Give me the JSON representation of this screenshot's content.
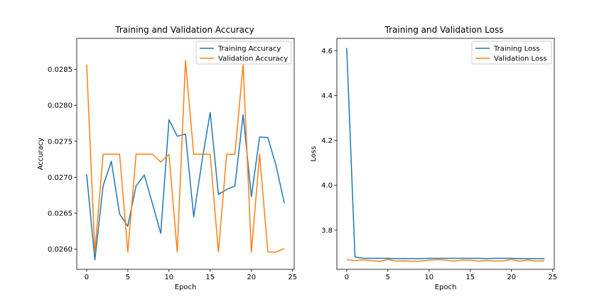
{
  "chart_data": [
    {
      "type": "line",
      "title": "Training and Validation Accuracy",
      "xlabel": "Epoch",
      "ylabel": "Accuracy",
      "xlim": [
        -1.2,
        25.2
      ],
      "ylim": [
        0.02572,
        0.02893
      ],
      "xticks": [
        0,
        5,
        10,
        15,
        20,
        25
      ],
      "xtick_labels": [
        "0",
        "5",
        "10",
        "15",
        "20",
        "25"
      ],
      "yticks": [
        0.026,
        0.0265,
        0.027,
        0.0275,
        0.028,
        0.0285
      ],
      "ytick_labels": [
        "0.0260",
        "0.0265",
        "0.0270",
        "0.0275",
        "0.0280",
        "0.0285"
      ],
      "legend_position": "top-right",
      "x": [
        0,
        1,
        2,
        3,
        4,
        5,
        6,
        7,
        8,
        9,
        10,
        11,
        12,
        13,
        14,
        15,
        16,
        17,
        18,
        19,
        20,
        21,
        22,
        23,
        24
      ],
      "series": [
        {
          "name": "Training Accuracy",
          "color": "#1f77b4",
          "values": [
            0.02704,
            0.02585,
            0.02688,
            0.02722,
            0.02649,
            0.02632,
            0.02688,
            0.02703,
            0.02663,
            0.02622,
            0.0278,
            0.02757,
            0.0276,
            0.02645,
            0.02722,
            0.0279,
            0.02676,
            0.02683,
            0.02688,
            0.02787,
            0.02673,
            0.02756,
            0.02755,
            0.02716,
            0.02664
          ]
        },
        {
          "name": "Validation Accuracy",
          "color": "#ff7f0e",
          "values": [
            0.02857,
            0.02596,
            0.02732,
            0.02732,
            0.02732,
            0.02596,
            0.02732,
            0.02732,
            0.02732,
            0.02721,
            0.02732,
            0.02596,
            0.02862,
            0.02732,
            0.02732,
            0.02732,
            0.02596,
            0.02732,
            0.02732,
            0.02857,
            0.02596,
            0.02732,
            0.02596,
            0.02596,
            0.02601
          ]
        }
      ]
    },
    {
      "type": "line",
      "title": "Training and Validation Loss",
      "xlabel": "Epoch",
      "ylabel": "Loss",
      "xlim": [
        -1.2,
        25.2
      ],
      "ylim": [
        3.625,
        4.655
      ],
      "xticks": [
        0,
        5,
        10,
        15,
        20,
        25
      ],
      "xtick_labels": [
        "0",
        "5",
        "10",
        "15",
        "20",
        "25"
      ],
      "yticks": [
        3.8,
        4.0,
        4.2,
        4.4,
        4.6
      ],
      "ytick_labels": [
        "3.8",
        "4.0",
        "4.2",
        "4.4",
        "4.6"
      ],
      "legend_position": "top-right",
      "x": [
        0,
        1,
        2,
        3,
        4,
        5,
        6,
        7,
        8,
        9,
        10,
        11,
        12,
        13,
        14,
        15,
        16,
        17,
        18,
        19,
        20,
        21,
        22,
        23,
        24
      ],
      "series": [
        {
          "name": "Training Loss",
          "color": "#1f77b4",
          "values": [
            4.612,
            3.68,
            3.674,
            3.674,
            3.674,
            3.674,
            3.673,
            3.673,
            3.673,
            3.673,
            3.674,
            3.674,
            3.674,
            3.674,
            3.674,
            3.674,
            3.674,
            3.673,
            3.674,
            3.674,
            3.674,
            3.673,
            3.673,
            3.673,
            3.673
          ]
        },
        {
          "name": "Validation Loss",
          "color": "#ff7f0e",
          "values": [
            3.668,
            3.664,
            3.667,
            3.664,
            3.661,
            3.669,
            3.662,
            3.663,
            3.661,
            3.662,
            3.666,
            3.668,
            3.666,
            3.662,
            3.666,
            3.666,
            3.662,
            3.665,
            3.662,
            3.663,
            3.669,
            3.661,
            3.667,
            3.662,
            3.663
          ]
        }
      ]
    }
  ]
}
